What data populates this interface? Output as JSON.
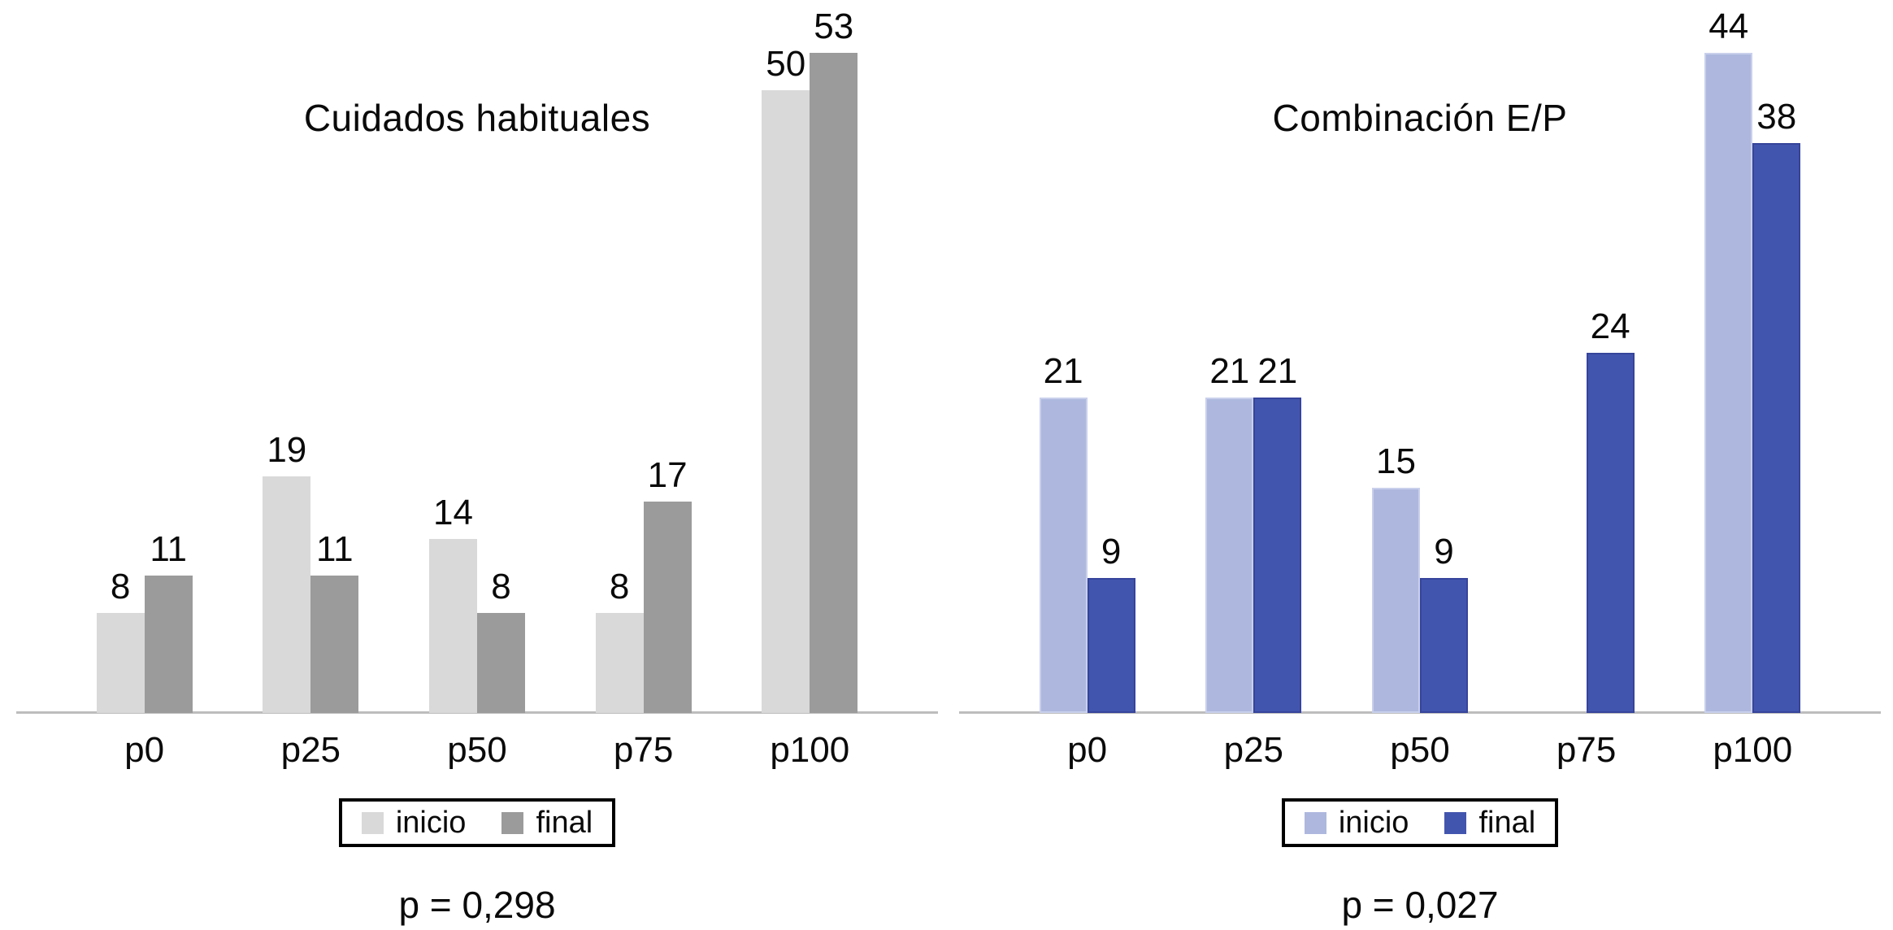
{
  "figure": {
    "background": "#ffffff",
    "text_color": "#0a0a0a",
    "axis_line_color": "#bdbdbd"
  },
  "chart_data": [
    {
      "type": "bar",
      "title": "Cuidados habituales",
      "categories": [
        "p0",
        "p25",
        "p50",
        "p75",
        "p100"
      ],
      "series": [
        {
          "name": "inicio",
          "values": [
            8,
            19,
            14,
            8,
            50
          ],
          "color": "#d9d9d9",
          "border_color": ""
        },
        {
          "name": "final",
          "values": [
            11,
            11,
            8,
            17,
            53
          ],
          "color": "#9b9b9b",
          "border_color": ""
        }
      ],
      "annotation": "p = 0,298",
      "legend": {
        "position": "bottom",
        "entries": [
          "inicio",
          "final"
        ]
      },
      "value_labels": true,
      "hide_zero_values": true,
      "grid": false,
      "y_axis": "hidden",
      "ylim": [
        0,
        53
      ]
    },
    {
      "type": "bar",
      "title": "Combinación E/P",
      "categories": [
        "p0",
        "p25",
        "p50",
        "p75",
        "p100"
      ],
      "series": [
        {
          "name": "inicio",
          "values": [
            21,
            21,
            15,
            0,
            44
          ],
          "color": "#aeb8de",
          "border_color": "#c9d0ec"
        },
        {
          "name": "final",
          "values": [
            9,
            21,
            9,
            24,
            38
          ],
          "color": "#4255ae",
          "border_color": "#36449b"
        }
      ],
      "annotation": "p = 0,027",
      "legend": {
        "position": "bottom",
        "entries": [
          "inicio",
          "final"
        ]
      },
      "value_labels": true,
      "hide_zero_values": true,
      "grid": false,
      "y_axis": "hidden",
      "ylim": [
        0,
        44
      ]
    }
  ]
}
